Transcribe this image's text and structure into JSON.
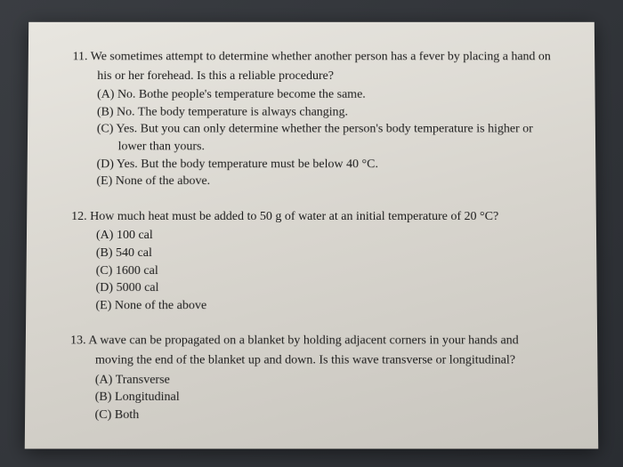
{
  "colors": {
    "paper_bg_start": "#e8e6e0",
    "paper_bg_end": "#c8c5be",
    "text": "#1a1a1a",
    "page_bg": "#2a2d32"
  },
  "typography": {
    "font_family": "Times New Roman",
    "body_fontsize": 14,
    "line_height": 1.4
  },
  "questions": [
    {
      "number": "11.",
      "stem_line1": "We sometimes attempt to determine whether another person has a fever by placing a hand on",
      "stem_line2": "his or her forehead. Is this a reliable procedure?",
      "options": [
        {
          "label": "(A)",
          "text": "No. Bothe people's temperature become the same."
        },
        {
          "label": "(B)",
          "text": "No. The body temperature is always changing."
        },
        {
          "label": "(C)",
          "text": "Yes. But you can only determine whether the person's body temperature is higher or",
          "cont": "lower than yours."
        },
        {
          "label": "(D)",
          "text": "Yes. But the body temperature must be below 40 °C."
        },
        {
          "label": "(E)",
          "text": "None of the above."
        }
      ]
    },
    {
      "number": "12.",
      "stem_line1": "How much heat must be added to 50 g of water at an initial temperature of 20 °C?",
      "options": [
        {
          "label": "(A)",
          "text": "100 cal"
        },
        {
          "label": "(B)",
          "text": "540 cal"
        },
        {
          "label": "(C)",
          "text": "1600 cal"
        },
        {
          "label": "(D)",
          "text": "5000 cal"
        },
        {
          "label": "(E)",
          "text": "None of the above"
        }
      ]
    },
    {
      "number": "13.",
      "stem_line1": "A wave can be propagated on a blanket by holding adjacent corners in your hands and",
      "stem_line2": "moving the end of the blanket up and down. Is this wave transverse or longitudinal?",
      "options": [
        {
          "label": "(A)",
          "text": "Transverse"
        },
        {
          "label": "(B)",
          "text": "Longitudinal"
        },
        {
          "label": "(C)",
          "text": "Both"
        }
      ]
    }
  ]
}
